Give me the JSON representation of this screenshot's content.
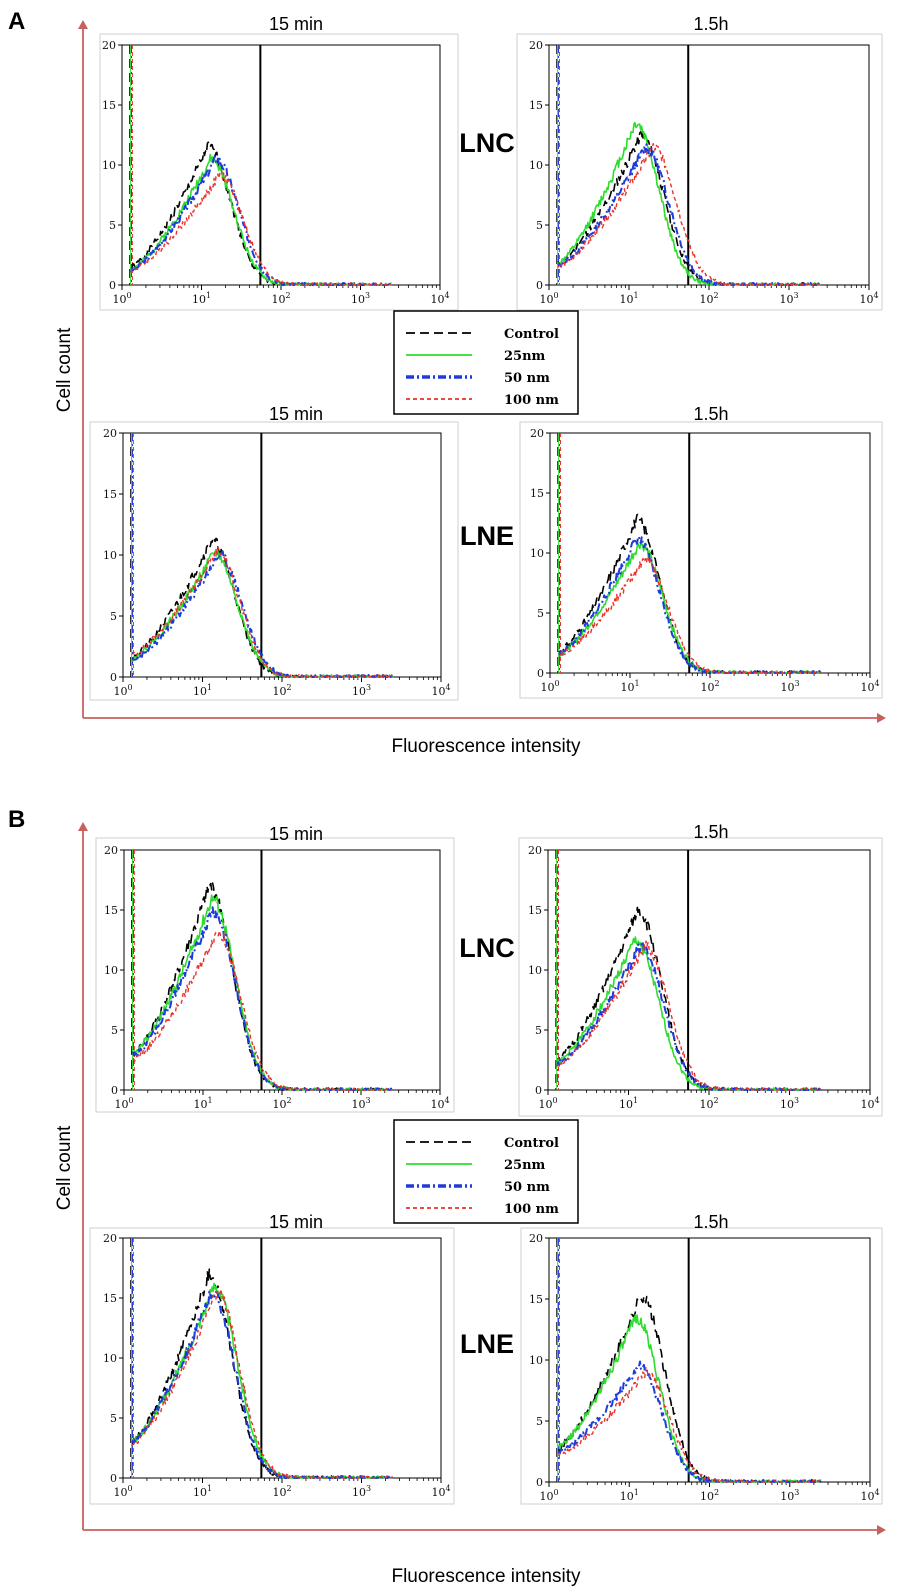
{
  "sections": [
    {
      "letter": "A",
      "x_title": "Fluorescence intensity",
      "y_title": "Cell count"
    },
    {
      "letter": "B",
      "x_title": "Fluorescence intensity",
      "y_title": "Cell count"
    }
  ],
  "legend": [
    {
      "label": "Control",
      "color": "#000000",
      "dash": "long-dash"
    },
    {
      "label": "25nm",
      "color": "#2EDC2E",
      "dash": "solid"
    },
    {
      "label": "50 nm",
      "color": "#1E3CDC",
      "dash": "dash-dot"
    },
    {
      "label": "100 nm",
      "color": "#E8322A",
      "dash": "short-dash"
    }
  ],
  "chart_data": [
    {
      "type": "line",
      "section": "A",
      "title": "15 min",
      "row_label": "LNC",
      "xlim": [
        1,
        10000
      ],
      "xscale": "log",
      "ylim": [
        0,
        20
      ],
      "y_ticks": [
        0,
        5,
        10,
        15,
        20
      ],
      "x_tick_labels": [
        "10^0",
        "10^1",
        "10^2",
        "10^3",
        "10^4"
      ],
      "gate_x": 55,
      "series": [
        {
          "name": "Control",
          "peak_x": 12,
          "peak_y": 11.5,
          "start_y": 1.5
        },
        {
          "name": "25nm",
          "peak_x": 13,
          "peak_y": 10.5,
          "start_y": 1.3
        },
        {
          "name": "50 nm",
          "peak_x": 15,
          "peak_y": 10.5,
          "start_y": 1.2
        },
        {
          "name": "100 nm",
          "peak_x": 17,
          "peak_y": 9.2,
          "start_y": 1.2
        }
      ]
    },
    {
      "type": "line",
      "section": "A",
      "title": "1.5h",
      "row_label": "",
      "xlim": [
        1,
        10000
      ],
      "xscale": "log",
      "ylim": [
        0,
        20
      ],
      "y_ticks": [
        0,
        5,
        10,
        15,
        20
      ],
      "x_tick_labels": [
        "10^0",
        "10^1",
        "10^2",
        "10^3",
        "10^4"
      ],
      "gate_x": 55,
      "series": [
        {
          "name": "Control",
          "peak_x": 14,
          "peak_y": 12.5,
          "start_y": 1.8
        },
        {
          "name": "25nm",
          "peak_x": 12,
          "peak_y": 13.5,
          "start_y": 1.8
        },
        {
          "name": "50 nm",
          "peak_x": 16,
          "peak_y": 11.5,
          "start_y": 1.6
        },
        {
          "name": "100 nm",
          "peak_x": 20,
          "peak_y": 11.5,
          "start_y": 1.5
        }
      ]
    },
    {
      "type": "line",
      "section": "A",
      "title": "15 min",
      "row_label": "LNE",
      "xlim": [
        1,
        10000
      ],
      "xscale": "log",
      "ylim": [
        0,
        20
      ],
      "y_ticks": [
        0,
        5,
        10,
        15,
        20
      ],
      "x_tick_labels": [
        "10^0",
        "10^1",
        "10^2",
        "10^3",
        "10^4"
      ],
      "gate_x": 55,
      "series": [
        {
          "name": "Control",
          "peak_x": 13,
          "peak_y": 11.2,
          "start_y": 1.6
        },
        {
          "name": "25nm",
          "peak_x": 14,
          "peak_y": 10.2,
          "start_y": 1.5
        },
        {
          "name": "50 nm",
          "peak_x": 16,
          "peak_y": 10.0,
          "start_y": 1.3
        },
        {
          "name": "100 nm",
          "peak_x": 15,
          "peak_y": 10.3,
          "start_y": 1.8
        }
      ]
    },
    {
      "type": "line",
      "section": "A",
      "title": "1.5h",
      "row_label": "LNE",
      "xlim": [
        1,
        10000
      ],
      "xscale": "log",
      "ylim": [
        0,
        20
      ],
      "y_ticks": [
        0,
        5,
        10,
        15,
        20
      ],
      "x_tick_labels": [
        "10^0",
        "10^1",
        "10^2",
        "10^3",
        "10^4"
      ],
      "gate_x": 55,
      "series": [
        {
          "name": "Control",
          "peak_x": 12,
          "peak_y": 12.8,
          "start_y": 1.8
        },
        {
          "name": "25nm",
          "peak_x": 13,
          "peak_y": 10.8,
          "start_y": 1.6
        },
        {
          "name": "50 nm",
          "peak_x": 12,
          "peak_y": 11.2,
          "start_y": 1.6
        },
        {
          "name": "100 nm",
          "peak_x": 15,
          "peak_y": 9.5,
          "start_y": 1.5
        }
      ]
    },
    {
      "type": "line",
      "section": "B",
      "title": "15 min",
      "row_label": "LNC",
      "xlim": [
        1,
        10000
      ],
      "xscale": "log",
      "ylim": [
        0,
        20
      ],
      "y_ticks": [
        0,
        5,
        10,
        15,
        20
      ],
      "x_tick_labels": [
        "10^0",
        "10^1",
        "10^2",
        "10^3",
        "10^4"
      ],
      "gate_x": 55,
      "series": [
        {
          "name": "Control",
          "peak_x": 12,
          "peak_y": 17,
          "start_y": 3
        },
        {
          "name": "25nm",
          "peak_x": 13,
          "peak_y": 16,
          "start_y": 3
        },
        {
          "name": "50 nm",
          "peak_x": 13,
          "peak_y": 15,
          "start_y": 2.8
        },
        {
          "name": "100 nm",
          "peak_x": 15,
          "peak_y": 13.2,
          "start_y": 2.5
        }
      ]
    },
    {
      "type": "line",
      "section": "B",
      "title": "1.5h",
      "row_label": "",
      "xlim": [
        1,
        10000
      ],
      "xscale": "log",
      "ylim": [
        0,
        20
      ],
      "y_ticks": [
        0,
        5,
        10,
        15,
        20
      ],
      "x_tick_labels": [
        "10^0",
        "10^1",
        "10^2",
        "10^3",
        "10^4"
      ],
      "gate_x": 55,
      "series": [
        {
          "name": "Control",
          "peak_x": 13,
          "peak_y": 15,
          "start_y": 2.5
        },
        {
          "name": "25nm",
          "peak_x": 12,
          "peak_y": 12.5,
          "start_y": 2.3
        },
        {
          "name": "50 nm",
          "peak_x": 14,
          "peak_y": 12,
          "start_y": 2.2
        },
        {
          "name": "100 nm",
          "peak_x": 16,
          "peak_y": 12,
          "start_y": 2.0
        }
      ]
    },
    {
      "type": "line",
      "section": "B",
      "title": "15 min",
      "row_label": "LNE",
      "xlim": [
        1,
        10000
      ],
      "xscale": "log",
      "ylim": [
        0,
        20
      ],
      "y_ticks": [
        0,
        5,
        10,
        15,
        20
      ],
      "x_tick_labels": [
        "10^0",
        "10^1",
        "10^2",
        "10^3",
        "10^4"
      ],
      "gate_x": 55,
      "series": [
        {
          "name": "Control",
          "peak_x": 12,
          "peak_y": 17,
          "start_y": 3
        },
        {
          "name": "25nm",
          "peak_x": 14,
          "peak_y": 16,
          "start_y": 3
        },
        {
          "name": "50 nm",
          "peak_x": 13,
          "peak_y": 15.5,
          "start_y": 3
        },
        {
          "name": "100 nm",
          "peak_x": 15,
          "peak_y": 15.5,
          "start_y": 2.8
        }
      ]
    },
    {
      "type": "line",
      "section": "B",
      "title": "1.5h",
      "row_label": "",
      "xlim": [
        1,
        10000
      ],
      "xscale": "log",
      "ylim": [
        0,
        20
      ],
      "y_ticks": [
        0,
        5,
        10,
        15,
        20
      ],
      "x_tick_labels": [
        "10^0",
        "10^1",
        "10^2",
        "10^3",
        "10^4"
      ],
      "gate_x": 55,
      "series": [
        {
          "name": "Control",
          "peak_x": 14,
          "peak_y": 15.3,
          "start_y": 2.8
        },
        {
          "name": "25nm",
          "peak_x": 12,
          "peak_y": 13.5,
          "start_y": 2.8
        },
        {
          "name": "50 nm",
          "peak_x": 13,
          "peak_y": 9.5,
          "start_y": 2.4
        },
        {
          "name": "100 nm",
          "peak_x": 16,
          "peak_y": 9.0,
          "start_y": 2.2
        }
      ]
    }
  ]
}
